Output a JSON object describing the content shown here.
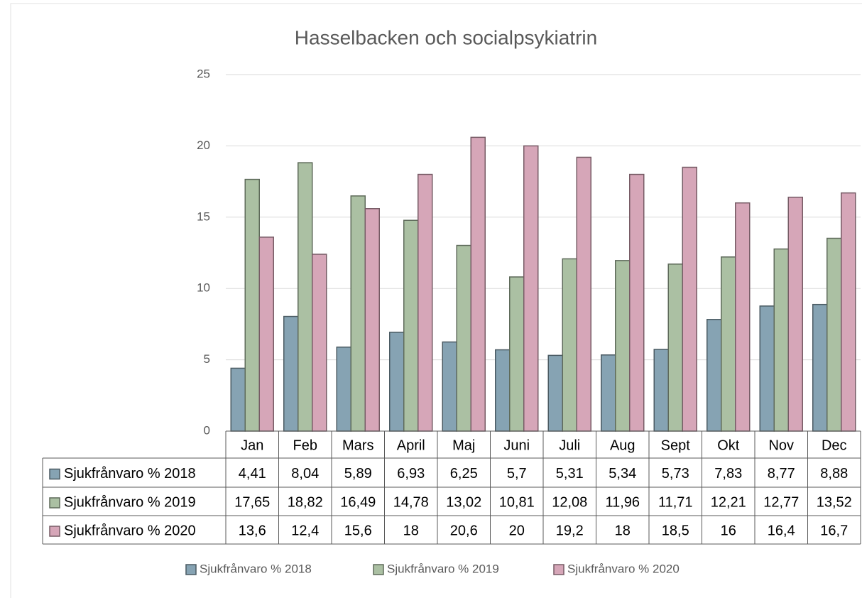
{
  "chart_data": {
    "type": "bar",
    "title": "Hasselbacken och socialpsykiatrin",
    "categories": [
      "Jan",
      "Feb",
      "Mars",
      "April",
      "Maj",
      "Juni",
      "Juli",
      "Aug",
      "Sept",
      "Okt",
      "Nov",
      "Dec"
    ],
    "series": [
      {
        "name": "Sjukfrånvaro % 2018",
        "color": "#86a3b3",
        "values": [
          4.41,
          8.04,
          5.89,
          6.93,
          6.25,
          5.7,
          5.31,
          5.34,
          5.73,
          7.83,
          8.77,
          8.88
        ],
        "value_labels": [
          "4,41",
          "8,04",
          "5,89",
          "6,93",
          "6,25",
          "5,7",
          "5,31",
          "5,34",
          "5,73",
          "7,83",
          "8,77",
          "8,88"
        ]
      },
      {
        "name": "Sjukfrånvaro % 2019",
        "color": "#abc0a3",
        "values": [
          17.65,
          18.82,
          16.49,
          14.78,
          13.02,
          10.81,
          12.08,
          11.96,
          11.71,
          12.21,
          12.77,
          13.52
        ],
        "value_labels": [
          "17,65",
          "18,82",
          "16,49",
          "14,78",
          "13,02",
          "10,81",
          "12,08",
          "11,96",
          "11,71",
          "12,21",
          "12,77",
          "13,52"
        ]
      },
      {
        "name": "Sjukfrånvaro % 2020",
        "color": "#d6a6b8",
        "values": [
          13.6,
          12.4,
          15.6,
          18,
          20.6,
          20,
          19.2,
          18,
          18.5,
          16,
          16.4,
          16.7
        ],
        "value_labels": [
          "13,6",
          "12,4",
          "15,6",
          "18",
          "20,6",
          "20",
          "19,2",
          "18",
          "18,5",
          "16",
          "16,4",
          "16,7"
        ]
      }
    ],
    "ylim": [
      0,
      25
    ],
    "yticks": [
      0,
      5,
      10,
      15,
      20,
      25
    ],
    "grid": true,
    "legend": "bottom"
  }
}
